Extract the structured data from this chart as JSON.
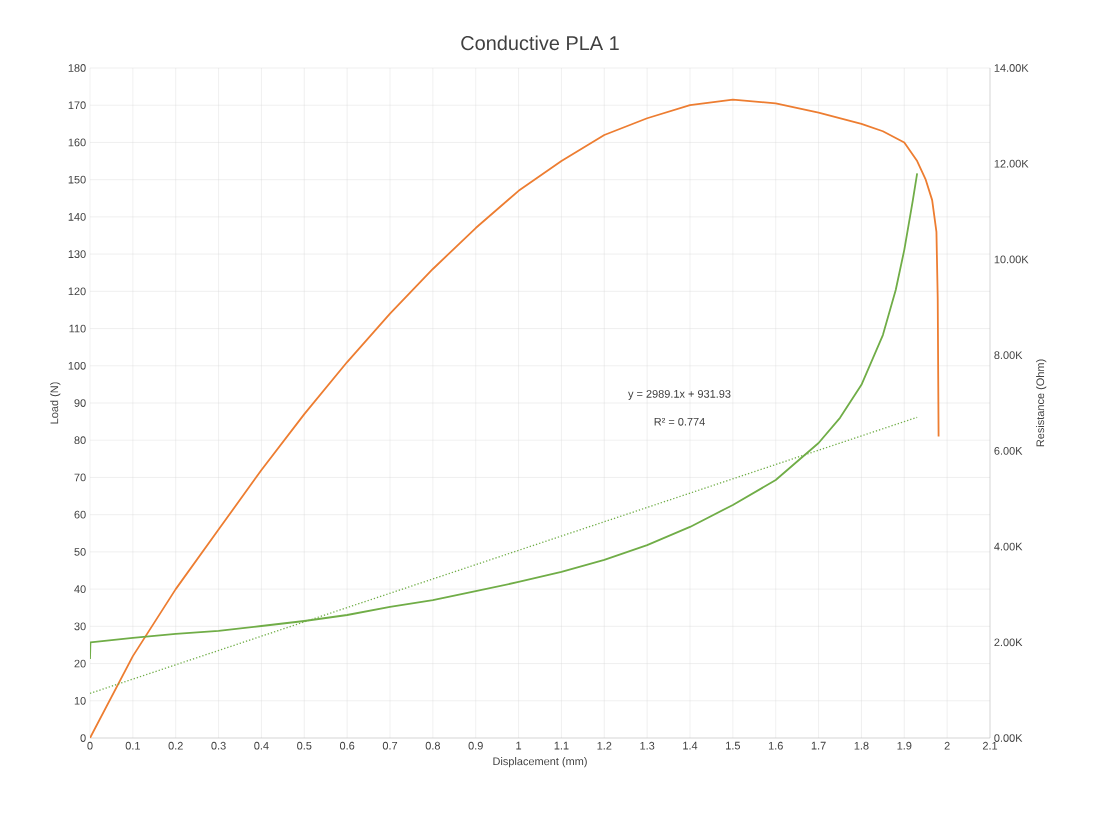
{
  "chart_data": {
    "type": "line",
    "title": "Conductive PLA 1",
    "xlabel": "Displacement (mm)",
    "ylabel": "Load (N)",
    "y2label": "Resistance (Ohm)",
    "xlim": [
      0,
      2.1
    ],
    "xticks": [
      0,
      0.1,
      0.2,
      0.3,
      0.4,
      0.5,
      0.6,
      0.7,
      0.8,
      0.9,
      1,
      1.1,
      1.2,
      1.3,
      1.4,
      1.5,
      1.6,
      1.7,
      1.8,
      1.9,
      2,
      2.1
    ],
    "ylim": [
      0,
      180
    ],
    "yticks": [
      0,
      10,
      20,
      30,
      40,
      50,
      60,
      70,
      80,
      90,
      100,
      110,
      120,
      130,
      140,
      150,
      160,
      170,
      180
    ],
    "y2lim": [
      0,
      14000
    ],
    "y2ticks": [
      {
        "value": 0,
        "label": "0.00K"
      },
      {
        "value": 2000,
        "label": "2.00K"
      },
      {
        "value": 4000,
        "label": "4.00K"
      },
      {
        "value": 6000,
        "label": "6.00K"
      },
      {
        "value": 8000,
        "label": "8.00K"
      },
      {
        "value": 10000,
        "label": "10.00K"
      },
      {
        "value": 12000,
        "label": "12.00K"
      },
      {
        "value": 14000,
        "label": "14.00K"
      }
    ],
    "grid": true,
    "annotations": [
      "y = 2989.1x + 931.93",
      "R² = 0.774"
    ],
    "series": [
      {
        "color": "#ed7d31",
        "x": [
          0,
          0.1,
          0.2,
          0.3,
          0.4,
          0.5,
          0.6,
          0.7,
          0.8,
          0.9,
          1.0,
          1.1,
          1.2,
          1.3,
          1.4,
          1.5,
          1.6,
          1.7,
          1.8,
          1.85,
          1.9,
          1.93,
          1.95,
          1.965,
          1.975,
          1.978,
          1.98
        ],
        "values": [
          0,
          22,
          40,
          56,
          72,
          87,
          101,
          114,
          126,
          137,
          147,
          155,
          162,
          166.5,
          170,
          171.5,
          170.5,
          168,
          165,
          163,
          160,
          155,
          150,
          144.5,
          136,
          118,
          81
        ]
      },
      {
        "color": "#70ad47",
        "axis": "y2",
        "x": [
          0,
          0.001,
          0.1,
          0.2,
          0.3,
          0.4,
          0.5,
          0.6,
          0.7,
          0.8,
          0.9,
          1.0,
          1.1,
          1.2,
          1.3,
          1.4,
          1.5,
          1.6,
          1.7,
          1.75,
          1.8,
          1.85,
          1.88,
          1.9,
          1.92,
          1.93
        ],
        "values": [
          1650,
          2000,
          2090,
          2175,
          2240,
          2340,
          2445,
          2570,
          2740,
          2880,
          3070,
          3260,
          3470,
          3720,
          4030,
          4410,
          4870,
          5390,
          6165,
          6690,
          7380,
          8420,
          9360,
          10200,
          11240,
          11800
        ]
      },
      {
        "type": "line",
        "color": "#70ad47",
        "axis": "y2",
        "line_style": "dotted",
        "x": [
          0,
          1.93
        ],
        "values": [
          931.93,
          6700.9
        ]
      }
    ]
  }
}
